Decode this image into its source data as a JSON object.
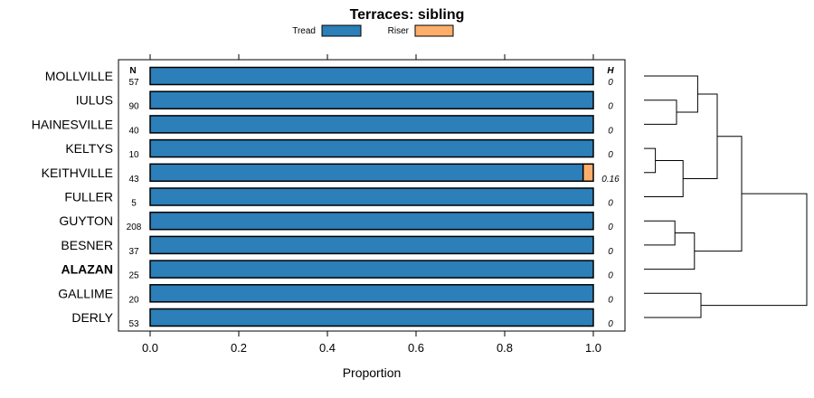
{
  "chart_data": {
    "type": "bar",
    "orientation": "horizontal",
    "stacked": true,
    "title": "Terraces: sibling",
    "xlabel": "Proportion",
    "xlim": [
      -0.07,
      1.07
    ],
    "xticks": [
      0.0,
      0.2,
      0.4,
      0.6,
      0.8,
      1.0
    ],
    "xtick_labels": [
      "0.0",
      "0.2",
      "0.4",
      "0.6",
      "0.8",
      "1.0"
    ],
    "legend": [
      {
        "name": "Tread",
        "color": "#2c7fb8"
      },
      {
        "name": "Riser",
        "color": "#fdae6b"
      }
    ],
    "header_n": "N",
    "header_h": "H",
    "categories": [
      "MOLLVILLE",
      "IULUS",
      "HAINESVILLE",
      "KELTYS",
      "KEITHVILLE",
      "FULLER",
      "GUYTON",
      "BESNER",
      "ALAZAN",
      "GALLIME",
      "DERLY"
    ],
    "bold_categories": [
      "ALAZAN"
    ],
    "n_values": [
      "57",
      "90",
      "40",
      "10",
      "43",
      "5",
      "208",
      "37",
      "25",
      "20",
      "53"
    ],
    "h_values": [
      "0",
      "0",
      "0",
      "0",
      "0.16",
      "0",
      "0",
      "0",
      "0",
      "0",
      "0"
    ],
    "series": [
      {
        "name": "Tread",
        "values": [
          1.0,
          1.0,
          1.0,
          1.0,
          0.977,
          1.0,
          1.0,
          1.0,
          1.0,
          1.0,
          1.0
        ]
      },
      {
        "name": "Riser",
        "values": [
          0.0,
          0.0,
          0.0,
          0.0,
          0.023,
          0.0,
          0.0,
          0.0,
          0.0,
          0.0,
          0.0
        ]
      }
    ],
    "dendrogram": {
      "leaves": [
        "MOLLVILLE",
        "IULUS",
        "HAINESVILLE",
        "KELTYS",
        "KEITHVILLE",
        "FULLER",
        "GUYTON",
        "BESNER",
        "ALAZAN",
        "GALLIME",
        "DERLY"
      ],
      "merges": [
        {
          "a": "leaf:1",
          "b": "leaf:2",
          "height": 0.2
        },
        {
          "a": "leaf:0",
          "b": "node:0",
          "height": 0.33
        },
        {
          "a": "leaf:3",
          "b": "leaf:4",
          "height": 0.07
        },
        {
          "a": "node:2",
          "b": "leaf:5",
          "height": 0.24
        },
        {
          "a": "node:1",
          "b": "node:3",
          "height": 0.45
        },
        {
          "a": "leaf:6",
          "b": "leaf:7",
          "height": 0.19
        },
        {
          "a": "node:5",
          "b": "leaf:8",
          "height": 0.31
        },
        {
          "a": "node:4",
          "b": "node:6",
          "height": 0.6
        },
        {
          "a": "leaf:9",
          "b": "leaf:10",
          "height": 0.35
        },
        {
          "a": "node:7",
          "b": "node:8",
          "height": 1.0
        }
      ]
    }
  }
}
